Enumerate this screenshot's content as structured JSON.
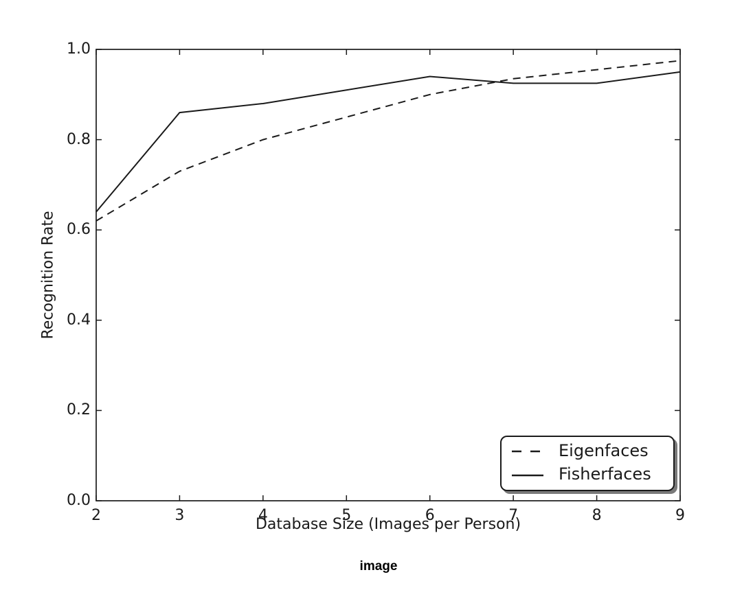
{
  "chart_data": {
    "type": "line",
    "x": [
      2,
      3,
      4,
      5,
      6,
      7,
      8,
      9
    ],
    "series": [
      {
        "name": "Eigenfaces",
        "style": "dashed",
        "values": [
          0.62,
          0.73,
          0.8,
          0.85,
          0.9,
          0.935,
          0.955,
          0.975
        ]
      },
      {
        "name": "Fisherfaces",
        "style": "solid",
        "values": [
          0.64,
          0.86,
          0.88,
          0.91,
          0.94,
          0.925,
          0.925,
          0.95
        ]
      }
    ],
    "title": "",
    "xlabel": "Database Size (Images per Person)",
    "ylabel": "Recognition Rate",
    "xlim": [
      2,
      9
    ],
    "ylim": [
      0.0,
      1.0
    ],
    "xticks": [
      2,
      3,
      4,
      5,
      6,
      7,
      8,
      9
    ],
    "xtick_labels": [
      "2",
      "3",
      "4",
      "5",
      "6",
      "7",
      "8",
      "9"
    ],
    "yticks": [
      0.0,
      0.2,
      0.4,
      0.6,
      0.8,
      1.0
    ],
    "ytick_labels": [
      "0.0",
      "0.2",
      "0.4",
      "0.6",
      "0.8",
      "1.0"
    ],
    "grid": false,
    "legend_position": "lower right",
    "line_color": "#1a1a1a",
    "background_color": "#ffffff"
  },
  "caption": {
    "text": "image"
  }
}
